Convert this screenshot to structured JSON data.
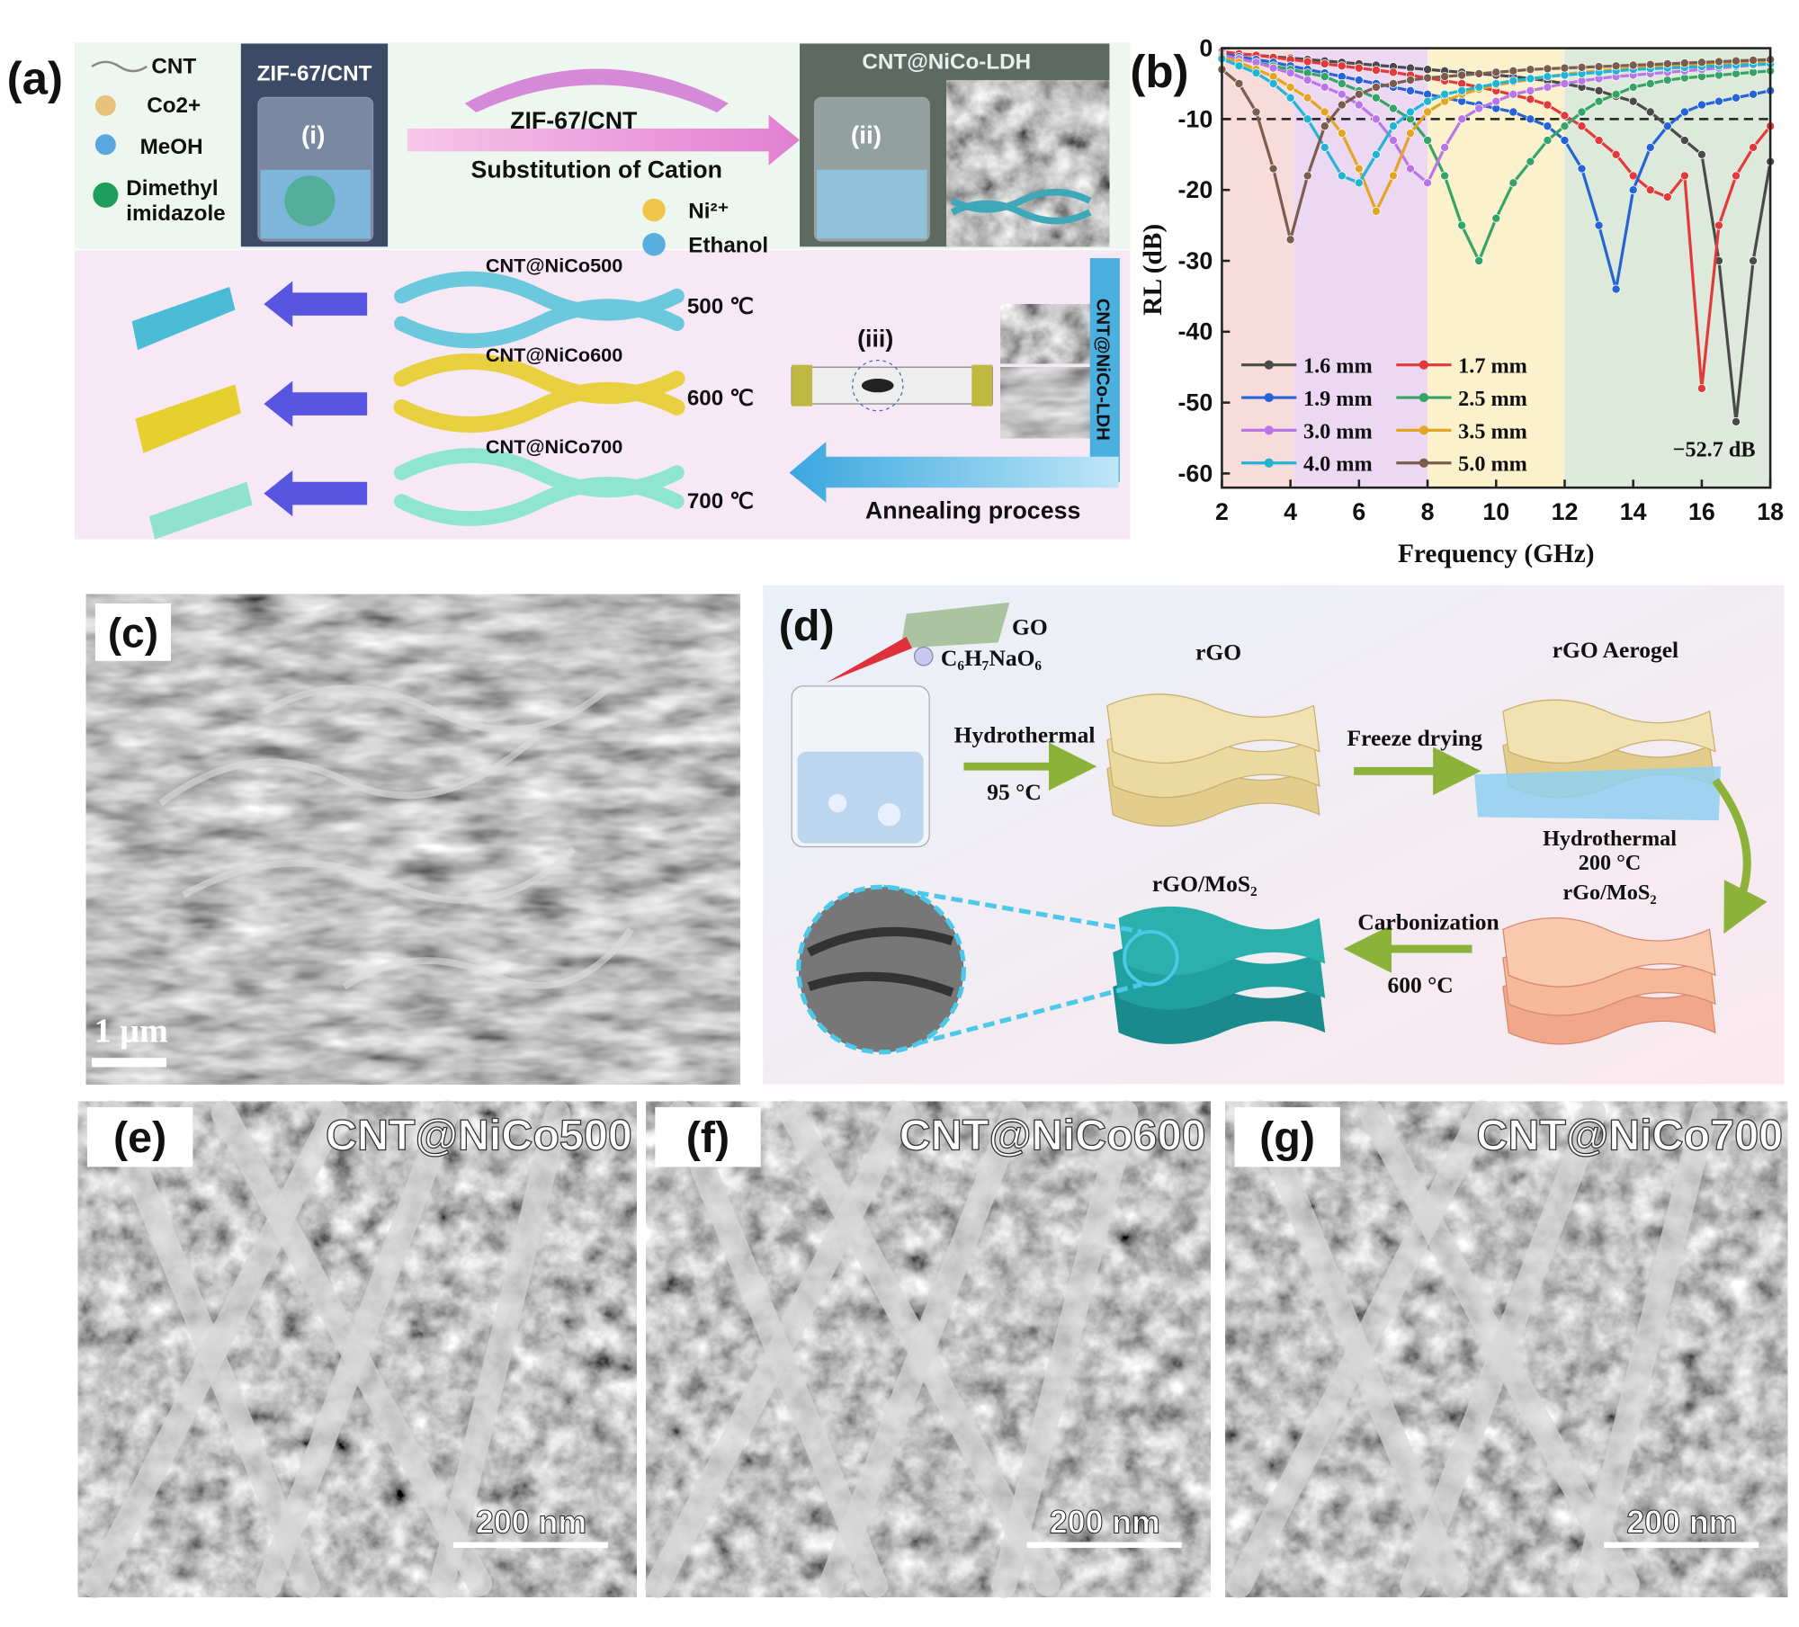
{
  "panel_a": {
    "label": "(a)",
    "legend": [
      [
        "CNT"
      ],
      [
        "Co2+"
      ],
      [
        "MeOH"
      ],
      [
        "Dimethyl",
        "imidazole"
      ]
    ],
    "step_i": {
      "title": "ZIF-67/CNT",
      "marker": "(i)"
    },
    "arrow": {
      "product": "ZIF-67/CNT",
      "caption": "Substitution of Cation"
    },
    "reagents": [
      "Ni²⁺",
      "Ethanol"
    ],
    "step_ii": {
      "title": "CNT@NiCo-LDH",
      "marker": "(ii)"
    },
    "samples": [
      {
        "name": "CNT@NiCo500",
        "temperature": "500 ℃"
      },
      {
        "name": "CNT@NiCo600",
        "temperature": "600 ℃"
      },
      {
        "name": "CNT@NiCo700",
        "temperature": "700 ℃"
      }
    ],
    "step_iii": {
      "marker": "(iii)",
      "side_label": "CNT@NiCo-LDH"
    },
    "annealing": "Annealing process"
  },
  "chart_data": {
    "type": "line",
    "label": "(b)",
    "xlabel": "Frequency (GHz)",
    "ylabel": "RL (dB)",
    "xlim": [
      2,
      18
    ],
    "xticks": [
      2,
      4,
      6,
      8,
      10,
      12,
      14,
      16,
      18
    ],
    "ylim": [
      -62,
      0
    ],
    "yticks": [
      0,
      -10,
      -20,
      -30,
      -40,
      -50,
      -60
    ],
    "threshold": -10,
    "annotation": "−52.7 dB",
    "bands": [
      {
        "from": 2,
        "to": 4.1,
        "color": "#f8dcdc"
      },
      {
        "from": 4.1,
        "to": 8,
        "color": "#ecd8f3"
      },
      {
        "from": 8,
        "to": 12,
        "color": "#fbf1cc"
      },
      {
        "from": 12,
        "to": 18,
        "color": "#dde9da"
      }
    ],
    "x": [
      2,
      2.5,
      3,
      3.5,
      4,
      4.5,
      5,
      5.5,
      6,
      6.5,
      7,
      7.5,
      8,
      8.5,
      9,
      9.5,
      10,
      10.5,
      11,
      11.5,
      12,
      12.5,
      13,
      13.5,
      14,
      14.5,
      15,
      15.5,
      16,
      16.5,
      17,
      17.5,
      18
    ],
    "series": [
      {
        "name": "1.6 mm",
        "color": "#4a4a4a",
        "values": [
          -0.5,
          -0.8,
          -1,
          -1.2,
          -1.4,
          -1.6,
          -1.8,
          -2,
          -2.2,
          -2.4,
          -2.6,
          -2.8,
          -3,
          -3.2,
          -3.4,
          -3.6,
          -3.8,
          -4,
          -4.3,
          -4.6,
          -5,
          -5.5,
          -6,
          -6.8,
          -7.5,
          -9,
          -11,
          -13,
          -15,
          -30,
          -52.7,
          -30,
          -16
        ]
      },
      {
        "name": "1.7 mm",
        "color": "#e23a3a",
        "values": [
          -0.5,
          -0.8,
          -1,
          -1.3,
          -1.6,
          -1.9,
          -2.2,
          -2.5,
          -2.8,
          -3.1,
          -3.4,
          -3.8,
          -4.2,
          -4.6,
          -5,
          -5.5,
          -6,
          -6.6,
          -7.2,
          -8,
          -9.5,
          -11,
          -13,
          -15,
          -18,
          -20,
          -21,
          -18,
          -48,
          -25,
          -18,
          -14,
          -11
        ]
      },
      {
        "name": "1.9 mm",
        "color": "#2563d6",
        "values": [
          -0.8,
          -1.2,
          -1.6,
          -2,
          -2.5,
          -3,
          -3.5,
          -4,
          -4.5,
          -5,
          -5.5,
          -6,
          -6.5,
          -7,
          -7.5,
          -8,
          -8.5,
          -9,
          -10,
          -11,
          -13,
          -17,
          -25,
          -34,
          -20,
          -14,
          -11,
          -9,
          -8,
          -7.5,
          -7,
          -6.5,
          -6
        ]
      },
      {
        "name": "2.5 mm",
        "color": "#36a466",
        "values": [
          -1,
          -1.5,
          -2,
          -2.5,
          -3,
          -3.5,
          -4,
          -5,
          -6,
          -7,
          -8.5,
          -10,
          -13,
          -18,
          -25,
          -30,
          -24,
          -19,
          -16,
          -13,
          -11,
          -9,
          -7.5,
          -6.5,
          -5.5,
          -5,
          -4.5,
          -4.2,
          -4,
          -3.8,
          -3.6,
          -3.4,
          -3.2
        ]
      },
      {
        "name": "3.0 mm",
        "color": "#b876e6",
        "values": [
          -1,
          -1.5,
          -2,
          -2.8,
          -3.5,
          -4.5,
          -5.5,
          -6.5,
          -8,
          -10,
          -13,
          -17,
          -19,
          -14,
          -10,
          -8.5,
          -7.5,
          -6.5,
          -6,
          -5.5,
          -5,
          -4.6,
          -4.3,
          -4,
          -3.8,
          -3.6,
          -3.4,
          -3.2,
          -3,
          -2.8,
          -2.6,
          -2.4,
          -2.2
        ]
      },
      {
        "name": "3.5 mm",
        "color": "#e2a622",
        "values": [
          -1.2,
          -2,
          -3,
          -4,
          -5.5,
          -7,
          -9,
          -12,
          -17,
          -23,
          -18,
          -12,
          -9,
          -7.5,
          -6.5,
          -5.8,
          -5.2,
          -4.8,
          -4.4,
          -4,
          -3.7,
          -3.4,
          -3.2,
          -3,
          -2.8,
          -2.6,
          -2.5,
          -2.4,
          -2.3,
          -2.2,
          -2.1,
          -2,
          -1.9
        ]
      },
      {
        "name": "4.0 mm",
        "color": "#22b4d4",
        "values": [
          -1.5,
          -2.5,
          -3.5,
          -5,
          -7,
          -10,
          -14,
          -18,
          -19,
          -15,
          -11,
          -9,
          -7.5,
          -6.5,
          -6,
          -5.5,
          -5,
          -4.6,
          -4.3,
          -4,
          -3.8,
          -3.6,
          -3.4,
          -3.2,
          -3,
          -2.9,
          -2.8,
          -2.7,
          -2.6,
          -2.5,
          -2.4,
          -2.3,
          -2.2
        ]
      },
      {
        "name": "5.0 mm",
        "color": "#7c5c4c",
        "values": [
          -3,
          -5,
          -9,
          -17,
          -27,
          -18,
          -11,
          -8,
          -6.5,
          -5.5,
          -5,
          -4.5,
          -4.2,
          -4,
          -3.8,
          -3.6,
          -3.4,
          -3.2,
          -3,
          -2.9,
          -2.8,
          -2.7,
          -2.6,
          -2.5,
          -2.4,
          -2.3,
          -2.2,
          -2.1,
          -2,
          -1.9,
          -1.8,
          -1.7,
          -1.6
        ]
      }
    ]
  },
  "panel_c": {
    "label": "(c)",
    "scale_bar": "1 μm"
  },
  "panel_d": {
    "label": "(d)",
    "reagents": [
      "GO",
      "C₆H₇NaO₆"
    ],
    "step1": {
      "process": "Hydrothermal",
      "temperature": "95 °C",
      "product": "rGO"
    },
    "step2": {
      "process": "Freeze drying",
      "product": "rGO Aerogel"
    },
    "step3": {
      "process": "Hydrothermal",
      "temperature": "200 °C",
      "product": "rGo/MoS₂"
    },
    "step4": {
      "process": "Carbonization",
      "temperature": "600 °C",
      "product": "rGO/MoS₂"
    }
  },
  "sem_panels": [
    {
      "label": "(e)",
      "sample": "CNT@NiCo500",
      "scale_bar": "200 nm"
    },
    {
      "label": "(f)",
      "sample": "CNT@NiCo600",
      "scale_bar": "200 nm"
    },
    {
      "label": "(g)",
      "sample": "CNT@NiCo700",
      "scale_bar": "200 nm"
    }
  ]
}
